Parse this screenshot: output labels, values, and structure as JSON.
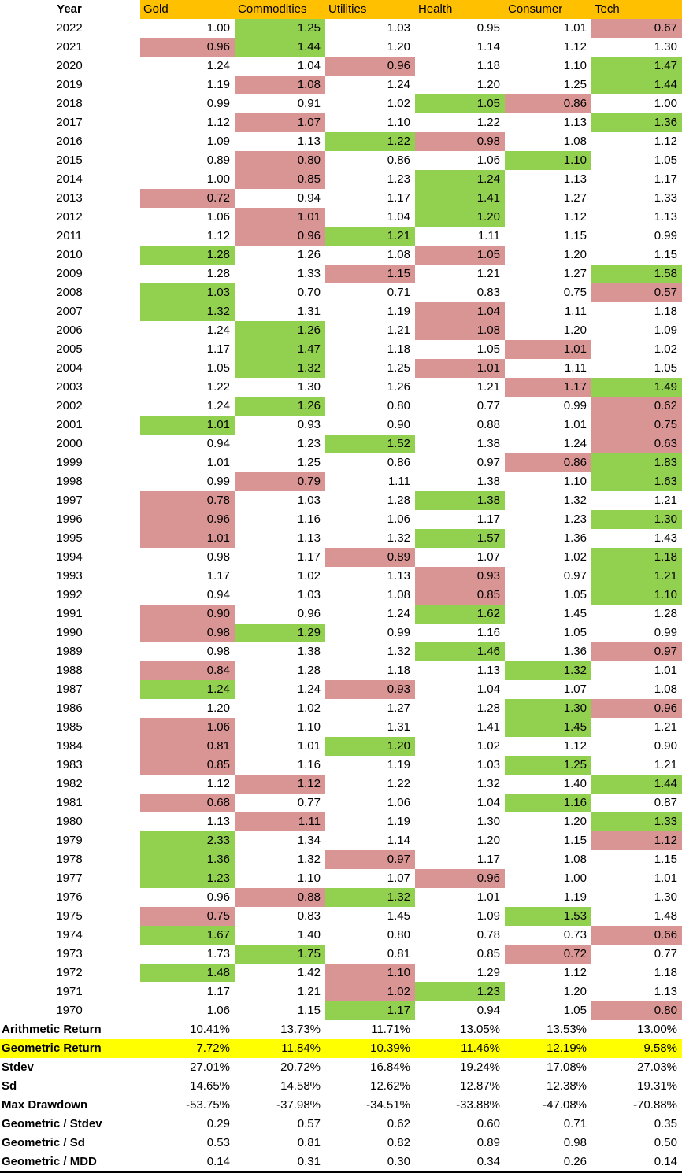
{
  "columns": {
    "year": "Year",
    "assets": [
      "Gold",
      "Commodities",
      "Utilities",
      "Health",
      "Consumer",
      "Tech"
    ]
  },
  "colors": {
    "header_bg": "#FFC000",
    "best_bg": "#92D050",
    "worst_bg": "#D99594",
    "highlight_row_bg": "#FFFF00",
    "text": "#000000"
  },
  "rows": [
    {
      "year": "2022",
      "values": [
        "1.00",
        "1.25",
        "1.03",
        "0.95",
        "1.01",
        "0.67"
      ],
      "best": 1,
      "worst": 5
    },
    {
      "year": "2021",
      "values": [
        "0.96",
        "1.44",
        "1.20",
        "1.14",
        "1.12",
        "1.30"
      ],
      "best": 1,
      "worst": 0
    },
    {
      "year": "2020",
      "values": [
        "1.24",
        "1.04",
        "0.96",
        "1.18",
        "1.10",
        "1.47"
      ],
      "best": 5,
      "worst": 2
    },
    {
      "year": "2019",
      "values": [
        "1.19",
        "1.08",
        "1.24",
        "1.20",
        "1.25",
        "1.44"
      ],
      "best": 5,
      "worst": 1
    },
    {
      "year": "2018",
      "values": [
        "0.99",
        "0.91",
        "1.02",
        "1.05",
        "0.86",
        "1.00"
      ],
      "best": 3,
      "worst": 4
    },
    {
      "year": "2017",
      "values": [
        "1.12",
        "1.07",
        "1.10",
        "1.22",
        "1.13",
        "1.36"
      ],
      "best": 5,
      "worst": 1
    },
    {
      "year": "2016",
      "values": [
        "1.09",
        "1.13",
        "1.22",
        "0.98",
        "1.08",
        "1.12"
      ],
      "best": 2,
      "worst": 3
    },
    {
      "year": "2015",
      "values": [
        "0.89",
        "0.80",
        "0.86",
        "1.06",
        "1.10",
        "1.05"
      ],
      "best": 4,
      "worst": 1
    },
    {
      "year": "2014",
      "values": [
        "1.00",
        "0.85",
        "1.23",
        "1.24",
        "1.13",
        "1.17"
      ],
      "best": 3,
      "worst": 1
    },
    {
      "year": "2013",
      "values": [
        "0.72",
        "0.94",
        "1.17",
        "1.41",
        "1.27",
        "1.33"
      ],
      "best": 3,
      "worst": 0
    },
    {
      "year": "2012",
      "values": [
        "1.06",
        "1.01",
        "1.04",
        "1.20",
        "1.12",
        "1.13"
      ],
      "best": 3,
      "worst": 1
    },
    {
      "year": "2011",
      "values": [
        "1.12",
        "0.96",
        "1.21",
        "1.11",
        "1.15",
        "0.99"
      ],
      "best": 2,
      "worst": 1
    },
    {
      "year": "2010",
      "values": [
        "1.28",
        "1.26",
        "1.08",
        "1.05",
        "1.20",
        "1.15"
      ],
      "best": 0,
      "worst": 3
    },
    {
      "year": "2009",
      "values": [
        "1.28",
        "1.33",
        "1.15",
        "1.21",
        "1.27",
        "1.58"
      ],
      "best": 5,
      "worst": 2
    },
    {
      "year": "2008",
      "values": [
        "1.03",
        "0.70",
        "0.71",
        "0.83",
        "0.75",
        "0.57"
      ],
      "best": 0,
      "worst": 5
    },
    {
      "year": "2007",
      "values": [
        "1.32",
        "1.31",
        "1.19",
        "1.04",
        "1.11",
        "1.18"
      ],
      "best": 0,
      "worst": 3
    },
    {
      "year": "2006",
      "values": [
        "1.24",
        "1.26",
        "1.21",
        "1.08",
        "1.20",
        "1.09"
      ],
      "best": 1,
      "worst": 3
    },
    {
      "year": "2005",
      "values": [
        "1.17",
        "1.47",
        "1.18",
        "1.05",
        "1.01",
        "1.02"
      ],
      "best": 1,
      "worst": 4
    },
    {
      "year": "2004",
      "values": [
        "1.05",
        "1.32",
        "1.25",
        "1.01",
        "1.11",
        "1.05"
      ],
      "best": 1,
      "worst": 3
    },
    {
      "year": "2003",
      "values": [
        "1.22",
        "1.30",
        "1.26",
        "1.21",
        "1.17",
        "1.49"
      ],
      "best": 5,
      "worst": 4
    },
    {
      "year": "2002",
      "values": [
        "1.24",
        "1.26",
        "0.80",
        "0.77",
        "0.99",
        "0.62"
      ],
      "best": 1,
      "worst": 5
    },
    {
      "year": "2001",
      "values": [
        "1.01",
        "0.93",
        "0.90",
        "0.88",
        "1.01",
        "0.75"
      ],
      "best": 0,
      "worst": 5
    },
    {
      "year": "2000",
      "values": [
        "0.94",
        "1.23",
        "1.52",
        "1.38",
        "1.24",
        "0.63"
      ],
      "best": 2,
      "worst": 5
    },
    {
      "year": "1999",
      "values": [
        "1.01",
        "1.25",
        "0.86",
        "0.97",
        "0.86",
        "1.83"
      ],
      "best": 5,
      "worst": 4
    },
    {
      "year": "1998",
      "values": [
        "0.99",
        "0.79",
        "1.11",
        "1.38",
        "1.10",
        "1.63"
      ],
      "best": 5,
      "worst": 1
    },
    {
      "year": "1997",
      "values": [
        "0.78",
        "1.03",
        "1.28",
        "1.38",
        "1.32",
        "1.21"
      ],
      "best": 3,
      "worst": 0
    },
    {
      "year": "1996",
      "values": [
        "0.96",
        "1.16",
        "1.06",
        "1.17",
        "1.23",
        "1.30"
      ],
      "best": 5,
      "worst": 0
    },
    {
      "year": "1995",
      "values": [
        "1.01",
        "1.13",
        "1.32",
        "1.57",
        "1.36",
        "1.43"
      ],
      "best": 3,
      "worst": 0
    },
    {
      "year": "1994",
      "values": [
        "0.98",
        "1.17",
        "0.89",
        "1.07",
        "1.02",
        "1.18"
      ],
      "best": 5,
      "worst": 2
    },
    {
      "year": "1993",
      "values": [
        "1.17",
        "1.02",
        "1.13",
        "0.93",
        "0.97",
        "1.21"
      ],
      "best": 5,
      "worst": 3
    },
    {
      "year": "1992",
      "values": [
        "0.94",
        "1.03",
        "1.08",
        "0.85",
        "1.05",
        "1.10"
      ],
      "best": 5,
      "worst": 3
    },
    {
      "year": "1991",
      "values": [
        "0.90",
        "0.96",
        "1.24",
        "1.62",
        "1.45",
        "1.28"
      ],
      "best": 3,
      "worst": 0
    },
    {
      "year": "1990",
      "values": [
        "0.98",
        "1.29",
        "0.99",
        "1.16",
        "1.05",
        "0.99"
      ],
      "best": 1,
      "worst": 0
    },
    {
      "year": "1989",
      "values": [
        "0.98",
        "1.38",
        "1.32",
        "1.46",
        "1.36",
        "0.97"
      ],
      "best": 3,
      "worst": 5
    },
    {
      "year": "1988",
      "values": [
        "0.84",
        "1.28",
        "1.18",
        "1.13",
        "1.32",
        "1.01"
      ],
      "best": 4,
      "worst": 0
    },
    {
      "year": "1987",
      "values": [
        "1.24",
        "1.24",
        "0.93",
        "1.04",
        "1.07",
        "1.08"
      ],
      "best": 0,
      "worst": 2
    },
    {
      "year": "1986",
      "values": [
        "1.20",
        "1.02",
        "1.27",
        "1.28",
        "1.30",
        "0.96"
      ],
      "best": 4,
      "worst": 5
    },
    {
      "year": "1985",
      "values": [
        "1.06",
        "1.10",
        "1.31",
        "1.41",
        "1.45",
        "1.21"
      ],
      "best": 4,
      "worst": 0
    },
    {
      "year": "1984",
      "values": [
        "0.81",
        "1.01",
        "1.20",
        "1.02",
        "1.12",
        "0.90"
      ],
      "best": 2,
      "worst": 0
    },
    {
      "year": "1983",
      "values": [
        "0.85",
        "1.16",
        "1.19",
        "1.03",
        "1.25",
        "1.21"
      ],
      "best": 4,
      "worst": 0
    },
    {
      "year": "1982",
      "values": [
        "1.12",
        "1.12",
        "1.22",
        "1.32",
        "1.40",
        "1.44"
      ],
      "best": 5,
      "worst": 1
    },
    {
      "year": "1981",
      "values": [
        "0.68",
        "0.77",
        "1.06",
        "1.04",
        "1.16",
        "0.87"
      ],
      "best": 4,
      "worst": 0
    },
    {
      "year": "1980",
      "values": [
        "1.13",
        "1.11",
        "1.19",
        "1.30",
        "1.20",
        "1.33"
      ],
      "best": 5,
      "worst": 1
    },
    {
      "year": "1979",
      "values": [
        "2.33",
        "1.34",
        "1.14",
        "1.20",
        "1.15",
        "1.12"
      ],
      "best": 0,
      "worst": 5
    },
    {
      "year": "1978",
      "values": [
        "1.36",
        "1.32",
        "0.97",
        "1.17",
        "1.08",
        "1.15"
      ],
      "best": 0,
      "worst": 2
    },
    {
      "year": "1977",
      "values": [
        "1.23",
        "1.10",
        "1.07",
        "0.96",
        "1.00",
        "1.01"
      ],
      "best": 0,
      "worst": 3
    },
    {
      "year": "1976",
      "values": [
        "0.96",
        "0.88",
        "1.32",
        "1.01",
        "1.19",
        "1.30"
      ],
      "best": 2,
      "worst": 1
    },
    {
      "year": "1975",
      "values": [
        "0.75",
        "0.83",
        "1.45",
        "1.09",
        "1.53",
        "1.48"
      ],
      "best": 4,
      "worst": 0
    },
    {
      "year": "1974",
      "values": [
        "1.67",
        "1.40",
        "0.80",
        "0.78",
        "0.73",
        "0.66"
      ],
      "best": 0,
      "worst": 5
    },
    {
      "year": "1973",
      "values": [
        "1.73",
        "1.75",
        "0.81",
        "0.85",
        "0.72",
        "0.77"
      ],
      "best": 1,
      "worst": 4
    },
    {
      "year": "1972",
      "values": [
        "1.48",
        "1.42",
        "1.10",
        "1.29",
        "1.12",
        "1.18"
      ],
      "best": 0,
      "worst": 2
    },
    {
      "year": "1971",
      "values": [
        "1.17",
        "1.21",
        "1.02",
        "1.23",
        "1.20",
        "1.13"
      ],
      "best": 3,
      "worst": 2
    },
    {
      "year": "1970",
      "values": [
        "1.06",
        "1.15",
        "1.17",
        "0.94",
        "1.05",
        "0.80"
      ],
      "best": 2,
      "worst": 5
    }
  ],
  "summary": [
    {
      "label": "Arithmetic Return",
      "values": [
        "10.41%",
        "13.73%",
        "11.71%",
        "13.05%",
        "13.53%",
        "13.00%"
      ],
      "highlighted": false
    },
    {
      "label": "Geometric Return",
      "values": [
        "7.72%",
        "11.84%",
        "10.39%",
        "11.46%",
        "12.19%",
        "9.58%"
      ],
      "highlighted": true
    },
    {
      "label": "Stdev",
      "values": [
        "27.01%",
        "20.72%",
        "16.84%",
        "19.24%",
        "17.08%",
        "27.03%"
      ],
      "highlighted": false
    },
    {
      "label": "Sd",
      "values": [
        "14.65%",
        "14.58%",
        "12.62%",
        "12.87%",
        "12.38%",
        "19.31%"
      ],
      "highlighted": false
    },
    {
      "label": "Max Drawdown",
      "values": [
        "-53.75%",
        "-37.98%",
        "-34.51%",
        "-33.88%",
        "-47.08%",
        "-70.88%"
      ],
      "highlighted": false
    },
    {
      "label": "Geometric / Stdev",
      "values": [
        "0.29",
        "0.57",
        "0.62",
        "0.60",
        "0.71",
        "0.35"
      ],
      "highlighted": false
    },
    {
      "label": "Geometric / Sd",
      "values": [
        "0.53",
        "0.81",
        "0.82",
        "0.89",
        "0.98",
        "0.50"
      ],
      "highlighted": false
    },
    {
      "label": "Geometric / MDD",
      "values": [
        "0.14",
        "0.31",
        "0.30",
        "0.34",
        "0.26",
        "0.14"
      ],
      "highlighted": false
    }
  ]
}
